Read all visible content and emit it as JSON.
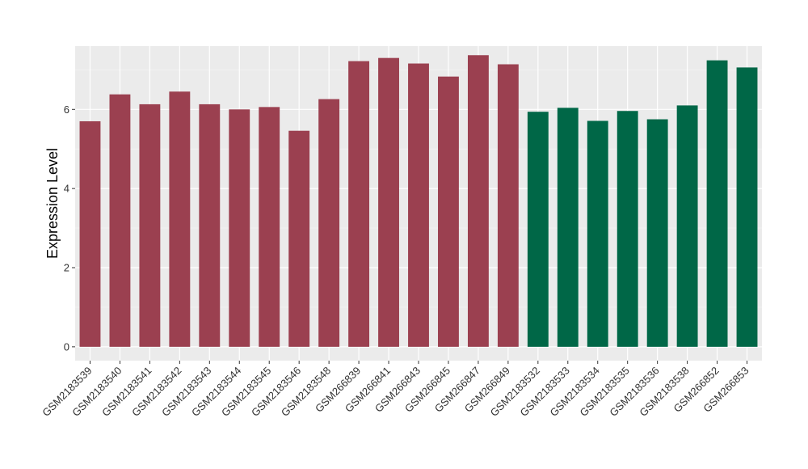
{
  "chart_data": {
    "type": "bar",
    "title": "",
    "xlabel": "",
    "ylabel": "Expression Level",
    "ylim": [
      -0.35,
      7.6
    ],
    "yticks": [
      0,
      2,
      4,
      6
    ],
    "grid": true,
    "legend": "none",
    "categories": [
      "GSM2183539",
      "GSM2183540",
      "GSM2183541",
      "GSM2183542",
      "GSM2183543",
      "GSM2183544",
      "GSM2183545",
      "GSM2183546",
      "GSM2183548",
      "GSM266839",
      "GSM266841",
      "GSM266843",
      "GSM266845",
      "GSM266847",
      "GSM266849",
      "GSM2183532",
      "GSM2183533",
      "GSM2183534",
      "GSM2183535",
      "GSM2183536",
      "GSM2183538",
      "GSM266852",
      "GSM266853"
    ],
    "values": [
      5.7,
      6.38,
      6.13,
      6.45,
      6.13,
      6.0,
      6.06,
      5.46,
      6.26,
      7.22,
      7.3,
      7.16,
      6.83,
      7.37,
      7.14,
      5.94,
      6.04,
      5.71,
      5.96,
      5.75,
      6.1,
      7.24,
      7.06
    ],
    "colors": [
      "#9B4050",
      "#9B4050",
      "#9B4050",
      "#9B4050",
      "#9B4050",
      "#9B4050",
      "#9B4050",
      "#9B4050",
      "#9B4050",
      "#9B4050",
      "#9B4050",
      "#9B4050",
      "#9B4050",
      "#9B4050",
      "#9B4050",
      "#006747",
      "#006747",
      "#006747",
      "#006747",
      "#006747",
      "#006747",
      "#006747",
      "#006747"
    ]
  }
}
